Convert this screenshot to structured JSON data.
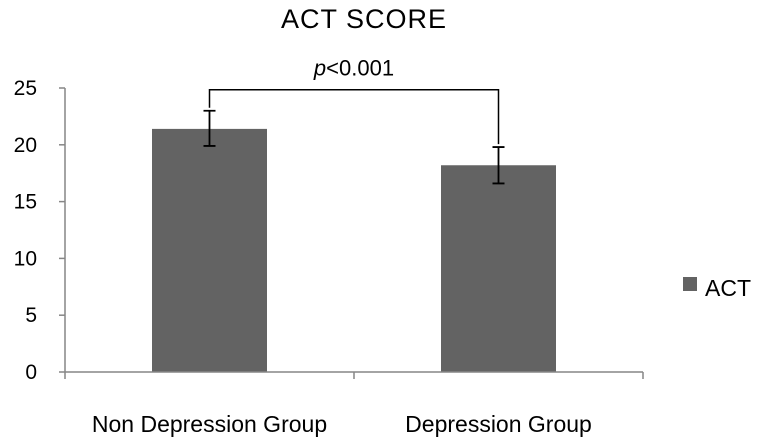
{
  "chart_data": {
    "type": "bar",
    "title": "ACT   SCORE",
    "categories": [
      "Non Depression Group",
      "Depression Group"
    ],
    "series": [
      {
        "name": "ACT",
        "values": [
          21.4,
          18.2
        ],
        "error_low": [
          19.9,
          16.6
        ],
        "error_high": [
          23.0,
          19.8
        ]
      }
    ],
    "ylim": [
      0,
      25
    ],
    "yticks": [
      "0",
      "5",
      "10",
      "15",
      "20",
      "25"
    ],
    "grid": false,
    "legend": {
      "position": "right"
    },
    "annotation": {
      "italic_part": "p",
      "rest": "<0.001"
    },
    "colors": {
      "bar": "#636363"
    }
  }
}
